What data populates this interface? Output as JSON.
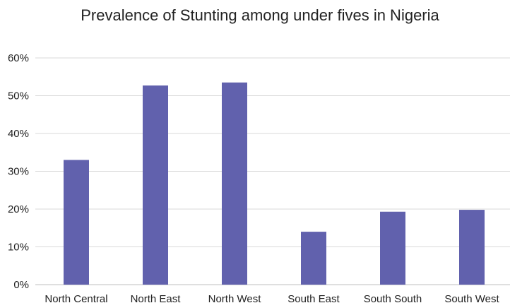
{
  "chart_data": {
    "type": "bar",
    "title": "Prevalence of Stunting among under fives in Nigeria",
    "xlabel": "",
    "ylabel": "",
    "categories": [
      "North Central",
      "North East",
      "North West",
      "South East",
      "South South",
      "South West"
    ],
    "values": [
      33,
      52.7,
      53.5,
      14,
      19.3,
      19.8
    ],
    "ylim": [
      0,
      60
    ],
    "yticks": [
      0,
      10,
      20,
      30,
      40,
      50,
      60
    ],
    "ytick_labels": [
      "0%",
      "10%",
      "20%",
      "30%",
      "40%",
      "50%",
      "60%"
    ],
    "grid": true,
    "legend": "none",
    "bar_color": "#6161ad"
  }
}
